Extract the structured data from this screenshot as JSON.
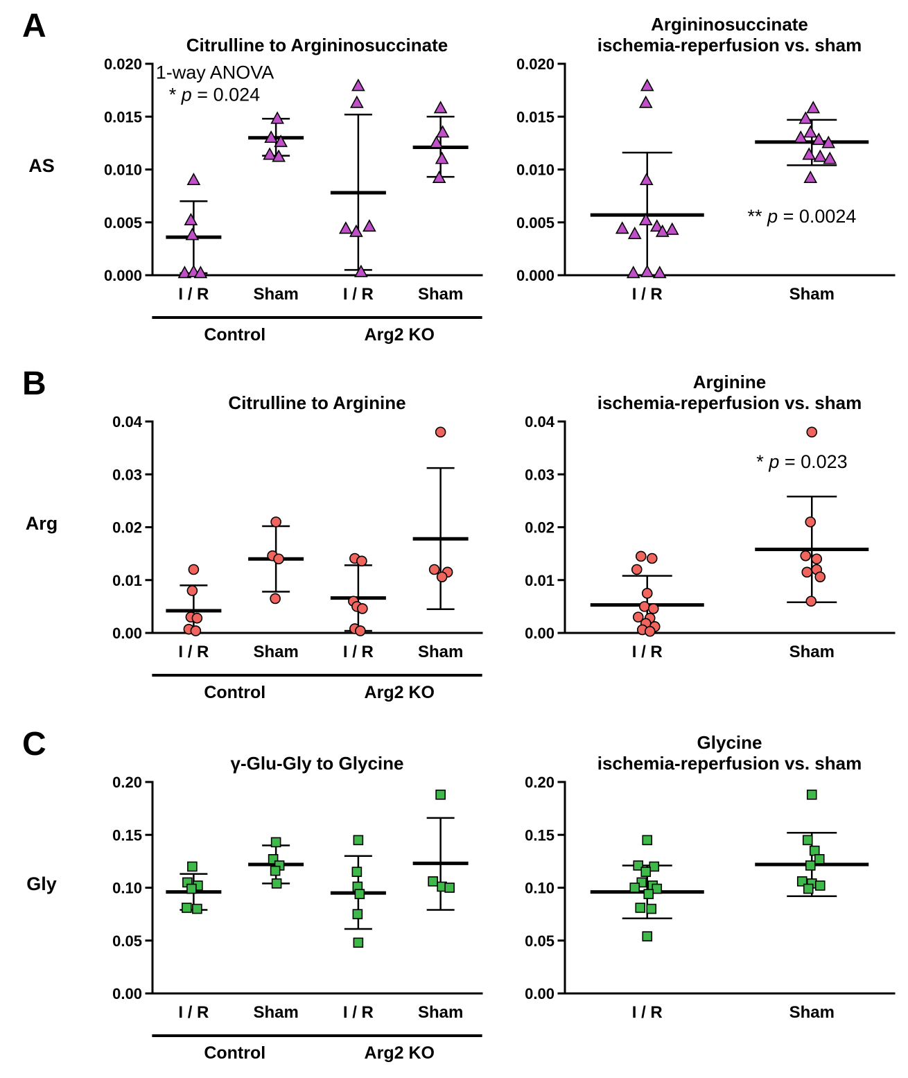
{
  "figure": {
    "background": "#ffffff",
    "panels": [
      {
        "letter": "A",
        "row_label": "AS"
      },
      {
        "letter": "B",
        "row_label": "Arg"
      },
      {
        "letter": "C",
        "row_label": "Gly"
      }
    ]
  },
  "chart_data": [
    {
      "id": "a-left",
      "type": "scatter",
      "layout": "left",
      "title_lines": [
        "Citrulline to Argininosuccinate"
      ],
      "marker": "triangle",
      "marker_color": "#c050c8",
      "ylim": [
        0,
        0.02
      ],
      "yticks": [
        "0.000",
        "0.005",
        "0.010",
        "0.015",
        "0.020"
      ],
      "annotation": {
        "lines": [
          {
            "fx": 0.01,
            "fy": 0.07,
            "anchor": "start",
            "segs": [
              {
                "t": "1-way ANOVA"
              }
            ]
          },
          {
            "fx": 0.05,
            "fy": 0.175,
            "anchor": "start",
            "segs": [
              {
                "t": "* "
              },
              {
                "t": "p",
                "i": true
              },
              {
                "t": " = 0.024"
              }
            ]
          }
        ]
      },
      "groups": [
        {
          "label": "I / R",
          "mean": 0.0036,
          "lo": 0.0002,
          "hi": 0.007,
          "points": [
            [
              0,
              0.009
            ],
            [
              -4,
              0.0052
            ],
            [
              -2,
              0.0038
            ],
            [
              -13,
              0.0002
            ],
            [
              0,
              0.0003
            ],
            [
              10,
              0.0002
            ]
          ]
        },
        {
          "label": "Sham",
          "mean": 0.013,
          "lo": 0.0113,
          "hi": 0.0148,
          "points": [
            [
              2,
              0.0148
            ],
            [
              -7,
              0.013
            ],
            [
              7,
              0.0126
            ],
            [
              -9,
              0.0114
            ],
            [
              4,
              0.0112
            ]
          ]
        },
        {
          "label": "I / R",
          "mean": 0.0078,
          "lo": 0.0005,
          "hi": 0.0152,
          "points": [
            [
              0,
              0.0179
            ],
            [
              -2,
              0.0163
            ],
            [
              -18,
              0.0044
            ],
            [
              -3,
              0.0041
            ],
            [
              16,
              0.0046
            ],
            [
              4,
              0.0003
            ]
          ]
        },
        {
          "label": "Sham",
          "mean": 0.0121,
          "lo": 0.0093,
          "hi": 0.015,
          "points": [
            [
              0,
              0.0158
            ],
            [
              3,
              0.0135
            ],
            [
              -6,
              0.0125
            ],
            [
              2,
              0.011
            ],
            [
              -2,
              0.0092
            ]
          ]
        }
      ],
      "brackets": [
        {
          "label": "Control",
          "from": 0,
          "to": 1
        },
        {
          "label": "Arg2 KO",
          "from": 2,
          "to": 3
        }
      ]
    },
    {
      "id": "a-right",
      "type": "scatter",
      "layout": "right",
      "title_lines": [
        "Argininosuccinate",
        "ischemia-reperfusion vs. sham"
      ],
      "marker": "triangle",
      "marker_color": "#c050c8",
      "ylim": [
        0,
        0.02
      ],
      "yticks": [
        "0.000",
        "0.005",
        "0.010",
        "0.015",
        "0.020"
      ],
      "annotation": {
        "lines": [
          {
            "fx": 0.72,
            "fy": 0.75,
            "anchor": "middle",
            "segs": [
              {
                "t": "** "
              },
              {
                "t": "p",
                "i": true
              },
              {
                "t": " = 0.0024"
              }
            ]
          }
        ]
      },
      "groups": [
        {
          "label": "I / R",
          "mean": 0.0057,
          "lo": 0.0,
          "hi": 0.0116,
          "points": [
            [
              0,
              0.0179
            ],
            [
              -2,
              0.0163
            ],
            [
              -1,
              0.009
            ],
            [
              -2,
              0.0052
            ],
            [
              -36,
              0.0044
            ],
            [
              14,
              0.0046
            ],
            [
              36,
              0.0043
            ],
            [
              -18,
              0.0039
            ],
            [
              22,
              0.0041
            ],
            [
              -20,
              0.0002
            ],
            [
              0,
              0.0003
            ],
            [
              18,
              0.0002
            ]
          ]
        },
        {
          "label": "Sham",
          "mean": 0.0126,
          "lo": 0.0104,
          "hi": 0.0147,
          "points": [
            [
              2,
              0.0158
            ],
            [
              -9,
              0.0148
            ],
            [
              -2,
              0.0135
            ],
            [
              -16,
              0.013
            ],
            [
              10,
              0.0128
            ],
            [
              24,
              0.0125
            ],
            [
              -4,
              0.0114
            ],
            [
              12,
              0.0112
            ],
            [
              26,
              0.011
            ],
            [
              -2,
              0.0092
            ]
          ]
        }
      ]
    },
    {
      "id": "b-left",
      "type": "scatter",
      "layout": "left",
      "title_lines": [
        "Citrulline to Arginine"
      ],
      "marker": "circle",
      "marker_color": "#f0655d",
      "ylim": [
        0,
        0.04
      ],
      "yticks": [
        "0.00",
        "0.01",
        "0.02",
        "0.03",
        "0.04"
      ],
      "groups": [
        {
          "label": "I / R",
          "mean": 0.0042,
          "lo": 0.0,
          "hi": 0.009,
          "points": [
            [
              0,
              0.012
            ],
            [
              -2,
              0.008
            ],
            [
              -4,
              0.003
            ],
            [
              5,
              0.0028
            ],
            [
              -7,
              0.0007
            ],
            [
              3,
              0.0004
            ]
          ]
        },
        {
          "label": "Sham",
          "mean": 0.014,
          "lo": 0.0078,
          "hi": 0.0202,
          "points": [
            [
              0,
              0.021
            ],
            [
              -5,
              0.0146
            ],
            [
              4,
              0.014
            ],
            [
              -1,
              0.0065
            ]
          ]
        },
        {
          "label": "I / R",
          "mean": 0.0066,
          "lo": 0.0004,
          "hi": 0.0128,
          "points": [
            [
              -5,
              0.0141
            ],
            [
              5,
              0.0136
            ],
            [
              -7,
              0.006
            ],
            [
              -2,
              0.005
            ],
            [
              6,
              0.0046
            ],
            [
              -5,
              0.0008
            ],
            [
              3,
              0.0004
            ]
          ]
        },
        {
          "label": "Sham",
          "mean": 0.0178,
          "lo": 0.0045,
          "hi": 0.0312,
          "points": [
            [
              0,
              0.038
            ],
            [
              -9,
              0.012
            ],
            [
              10,
              0.0115
            ],
            [
              2,
              0.0106
            ]
          ]
        }
      ],
      "brackets": [
        {
          "label": "Control",
          "from": 0,
          "to": 1
        },
        {
          "label": "Arg2 KO",
          "from": 2,
          "to": 3
        }
      ]
    },
    {
      "id": "b-right",
      "type": "scatter",
      "layout": "right",
      "title_lines": [
        "Arginine",
        "ischemia-reperfusion vs. sham"
      ],
      "marker": "circle",
      "marker_color": "#f0655d",
      "ylim": [
        0,
        0.04
      ],
      "yticks": [
        "0.00",
        "0.01",
        "0.02",
        "0.03",
        "0.04"
      ],
      "annotation": {
        "lines": [
          {
            "fx": 0.72,
            "fy": 0.22,
            "anchor": "middle",
            "segs": [
              {
                "t": "* "
              },
              {
                "t": "p",
                "i": true
              },
              {
                "t": " = 0.023"
              }
            ]
          }
        ]
      },
      "groups": [
        {
          "label": "I / R",
          "mean": 0.0053,
          "lo": 0.0,
          "hi": 0.0108,
          "points": [
            [
              -9,
              0.0145
            ],
            [
              7,
              0.0141
            ],
            [
              -15,
              0.012
            ],
            [
              0,
              0.0075
            ],
            [
              -4,
              0.005
            ],
            [
              9,
              0.0046
            ],
            [
              -13,
              0.003
            ],
            [
              4,
              0.0028
            ],
            [
              -2,
              0.0018
            ],
            [
              11,
              0.0012
            ],
            [
              -7,
              0.0006
            ],
            [
              4,
              0.0003
            ]
          ]
        },
        {
          "label": "Sham",
          "mean": 0.0158,
          "lo": 0.0058,
          "hi": 0.0258,
          "points": [
            [
              0,
              0.038
            ],
            [
              -2,
              0.021
            ],
            [
              -9,
              0.0146
            ],
            [
              7,
              0.014
            ],
            [
              7,
              0.012
            ],
            [
              -7,
              0.0115
            ],
            [
              12,
              0.0106
            ],
            [
              -1,
              0.006
            ]
          ]
        }
      ]
    },
    {
      "id": "c-left",
      "type": "scatter",
      "layout": "left",
      "title_lines": [
        "γ-Glu-Gly to Glycine"
      ],
      "marker": "square",
      "marker_color": "#3eb94a",
      "ylim": [
        0,
        0.2
      ],
      "yticks": [
        "0.00",
        "0.05",
        "0.10",
        "0.15",
        "0.20"
      ],
      "groups": [
        {
          "label": "I / R",
          "mean": 0.096,
          "lo": 0.079,
          "hi": 0.113,
          "points": [
            [
              -2,
              0.12
            ],
            [
              -9,
              0.105
            ],
            [
              6,
              0.102
            ],
            [
              -3,
              0.099
            ],
            [
              -10,
              0.081
            ],
            [
              5,
              0.08
            ]
          ]
        },
        {
          "label": "Sham",
          "mean": 0.122,
          "lo": 0.104,
          "hi": 0.14,
          "points": [
            [
              0,
              0.143
            ],
            [
              -4,
              0.127
            ],
            [
              5,
              0.121
            ],
            [
              -1,
              0.116
            ],
            [
              1,
              0.104
            ]
          ]
        },
        {
          "label": "I / R",
          "mean": 0.095,
          "lo": 0.061,
          "hi": 0.13,
          "points": [
            [
              0,
              0.145
            ],
            [
              -2,
              0.115
            ],
            [
              -1,
              0.101
            ],
            [
              2,
              0.094
            ],
            [
              -1,
              0.075
            ],
            [
              0,
              0.048
            ]
          ]
        },
        {
          "label": "Sham",
          "mean": 0.123,
          "lo": 0.079,
          "hi": 0.166,
          "points": [
            [
              0,
              0.188
            ],
            [
              -11,
              0.106
            ],
            [
              2,
              0.101
            ],
            [
              13,
              0.1
            ]
          ]
        }
      ],
      "brackets": [
        {
          "label": "Control",
          "from": 0,
          "to": 1
        },
        {
          "label": "Arg2 KO",
          "from": 2,
          "to": 3
        }
      ]
    },
    {
      "id": "c-right",
      "type": "scatter",
      "layout": "right",
      "title_lines": [
        "Glycine",
        "ischemia-reperfusion vs. sham"
      ],
      "marker": "square",
      "marker_color": "#3eb94a",
      "ylim": [
        0,
        0.2
      ],
      "yticks": [
        "0.00",
        "0.05",
        "0.10",
        "0.15",
        "0.20"
      ],
      "groups": [
        {
          "label": "I / R",
          "mean": 0.096,
          "lo": 0.071,
          "hi": 0.121,
          "points": [
            [
              0,
              0.145
            ],
            [
              -13,
              0.121
            ],
            [
              10,
              0.12
            ],
            [
              -2,
              0.115
            ],
            [
              -8,
              0.105
            ],
            [
              8,
              0.102
            ],
            [
              -18,
              0.1
            ],
            [
              14,
              0.099
            ],
            [
              2,
              0.094
            ],
            [
              -10,
              0.081
            ],
            [
              6,
              0.08
            ],
            [
              0,
              0.054
            ]
          ]
        },
        {
          "label": "Sham",
          "mean": 0.122,
          "lo": 0.092,
          "hi": 0.152,
          "points": [
            [
              0,
              0.188
            ],
            [
              -6,
              0.145
            ],
            [
              4,
              0.135
            ],
            [
              11,
              0.127
            ],
            [
              -2,
              0.121
            ],
            [
              -14,
              0.106
            ],
            [
              0,
              0.104
            ],
            [
              12,
              0.102
            ],
            [
              -5,
              0.099
            ]
          ]
        }
      ]
    }
  ]
}
